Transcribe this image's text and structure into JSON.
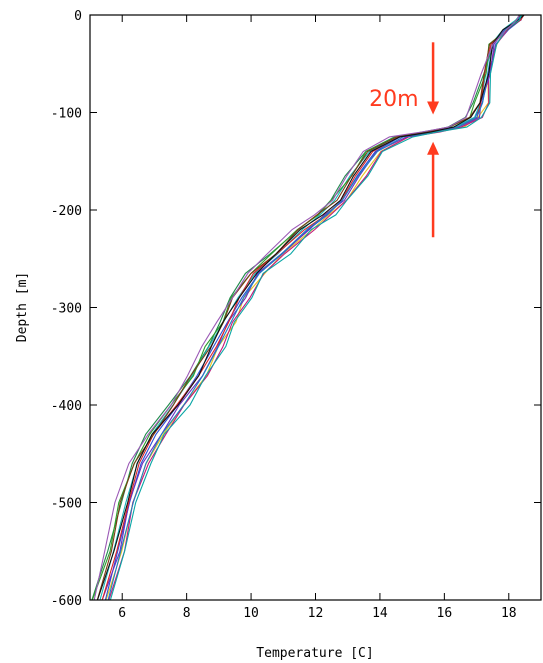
{
  "chart_data": {
    "type": "line",
    "title": "",
    "xlabel": "Temperature [C]",
    "ylabel": "Depth [m]",
    "xlim": [
      5,
      19
    ],
    "ylim": [
      -600,
      0
    ],
    "xticks": [
      6,
      8,
      10,
      12,
      14,
      16,
      18
    ],
    "yticks": [
      0,
      -100,
      -200,
      -300,
      -400,
      -500,
      -600
    ],
    "grid": false,
    "legend": "none",
    "annotations": [
      {
        "text": "20m",
        "color": "#ff3b1f",
        "x": 15.2,
        "y": -85
      },
      {
        "type": "arrow",
        "color": "#ff3b1f",
        "direction": "down",
        "x": 15.65,
        "from_y": -28,
        "to_y": -102
      },
      {
        "type": "arrow",
        "color": "#ff3b1f",
        "direction": "up",
        "x": 15.65,
        "from_y": -228,
        "to_y": -130
      }
    ],
    "base_profile": {
      "temperature": [
        18.4,
        18.3,
        17.9,
        17.5,
        17.3,
        17.1,
        16.9,
        16.3,
        15.5,
        14.6,
        13.8,
        13.2,
        12.7,
        12.2,
        11.6,
        10.8,
        10.1,
        9.6,
        9.2,
        8.8,
        8.3,
        7.7,
        7.0,
        6.5,
        6.1,
        5.7,
        5.3
      ],
      "depth": [
        0,
        -5,
        -15,
        -30,
        -60,
        -90,
        -105,
        -115,
        -120,
        -125,
        -140,
        -165,
        -190,
        -205,
        -220,
        -245,
        -265,
        -290,
        -315,
        -340,
        -370,
        -400,
        -430,
        -460,
        -500,
        -550,
        -600
      ]
    },
    "series": [
      {
        "color": "#e8c21e",
        "offset": 0.25
      },
      {
        "color": "#1f8a4c",
        "offset": -0.2
      },
      {
        "color": "#2a4fd6",
        "offset": 0.1
      },
      {
        "color": "#c2187a",
        "offset": 0.3
      },
      {
        "color": "#6a2fbf",
        "offset": 0.15
      },
      {
        "color": "#18b2b8",
        "offset": -0.05
      },
      {
        "color": "#d9242a",
        "offset": 0.05
      },
      {
        "color": "#2c9e2c",
        "offset": -0.15
      },
      {
        "color": "#7a3a14",
        "offset": -0.1
      },
      {
        "color": "#1e7fc4",
        "offset": 0.2
      },
      {
        "color": "#111111",
        "offset": 0.0
      },
      {
        "color": "#0aa6a6",
        "offset": 0.35
      },
      {
        "color": "#9b59b6",
        "offset": -0.25
      }
    ]
  }
}
